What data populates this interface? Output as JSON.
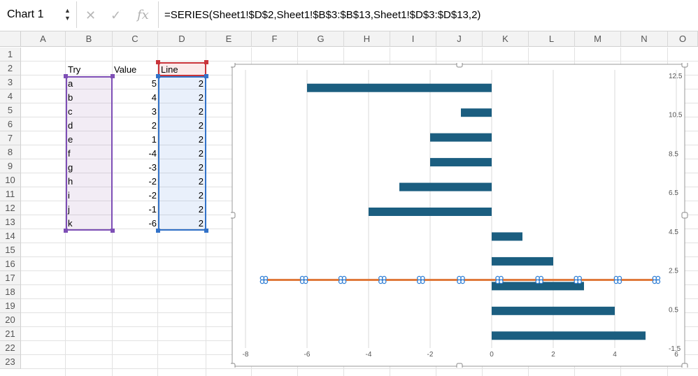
{
  "formula_bar": {
    "name_box": "Chart 1",
    "spin": "▲\n▼",
    "cancel_icon": "✕",
    "confirm_icon": "✓",
    "fx_label": "fx",
    "formula": "=SERIES(Sheet1!$D$2,Sheet1!$B$3:$B$13,Sheet1!$D$3:$D$13,2)"
  },
  "sheet": {
    "columns": [
      "A",
      "B",
      "C",
      "D",
      "E",
      "F",
      "G",
      "H",
      "I",
      "J",
      "K",
      "L",
      "M",
      "N",
      "O"
    ],
    "rows": [
      "1",
      "2",
      "3",
      "4",
      "5",
      "6",
      "7",
      "8",
      "9",
      "10",
      "11",
      "12",
      "13",
      "14",
      "15",
      "16",
      "17",
      "18",
      "19",
      "20",
      "21",
      "22",
      "23"
    ],
    "headers": {
      "try": "Try",
      "value": "Value",
      "line": "Line"
    },
    "data_rows": [
      {
        "try": "a",
        "value": "5",
        "line": "2"
      },
      {
        "try": "b",
        "value": "4",
        "line": "2"
      },
      {
        "try": "c",
        "value": "3",
        "line": "2"
      },
      {
        "try": "d",
        "value": "2",
        "line": "2"
      },
      {
        "try": "e",
        "value": "1",
        "line": "2"
      },
      {
        "try": "f",
        "value": "-4",
        "line": "2"
      },
      {
        "try": "g",
        "value": "-3",
        "line": "2"
      },
      {
        "try": "h",
        "value": "-2",
        "line": "2"
      },
      {
        "try": "i",
        "value": "-2",
        "line": "2"
      },
      {
        "try": "j",
        "value": "-1",
        "line": "2"
      },
      {
        "try": "k",
        "value": "-6",
        "line": "2"
      }
    ]
  },
  "chart_data": {
    "type": "bar",
    "orientation": "horizontal",
    "categories": [
      "a",
      "b",
      "c",
      "d",
      "e",
      "f",
      "g",
      "h",
      "i",
      "j",
      "k"
    ],
    "series": [
      {
        "values": [
          5,
          4,
          3,
          2,
          1,
          -4,
          -3,
          -2,
          -2,
          -1,
          -6
        ],
        "color": "#1b5e80"
      },
      {
        "type": "scatter-line",
        "x": [
          -7.4,
          -6.1,
          -4.85,
          -3.55,
          -2.3,
          -1.0,
          0.25,
          1.55,
          2.8,
          4.1,
          5.35
        ],
        "y": [
          2,
          2,
          2,
          2,
          2,
          2,
          2,
          2,
          2,
          2,
          2
        ],
        "color": "#e07a3c"
      }
    ],
    "xlim": [
      -8,
      6
    ],
    "x_ticks": [
      "-8",
      "-6",
      "-4",
      "-2",
      "0",
      "2",
      "4",
      "6"
    ],
    "y2lim": [
      -1.5,
      12.5
    ],
    "y2_ticks": [
      "12.5",
      "10.5",
      "8.5",
      "6.5",
      "4.5",
      "2.5",
      "0.5",
      "-1.5"
    ],
    "grid": true,
    "selected": true,
    "colors": {
      "bar": "#1b5e80",
      "line": "#e07a3c",
      "marker": "#2f7fd6",
      "grid": "#d9d9d9"
    }
  }
}
